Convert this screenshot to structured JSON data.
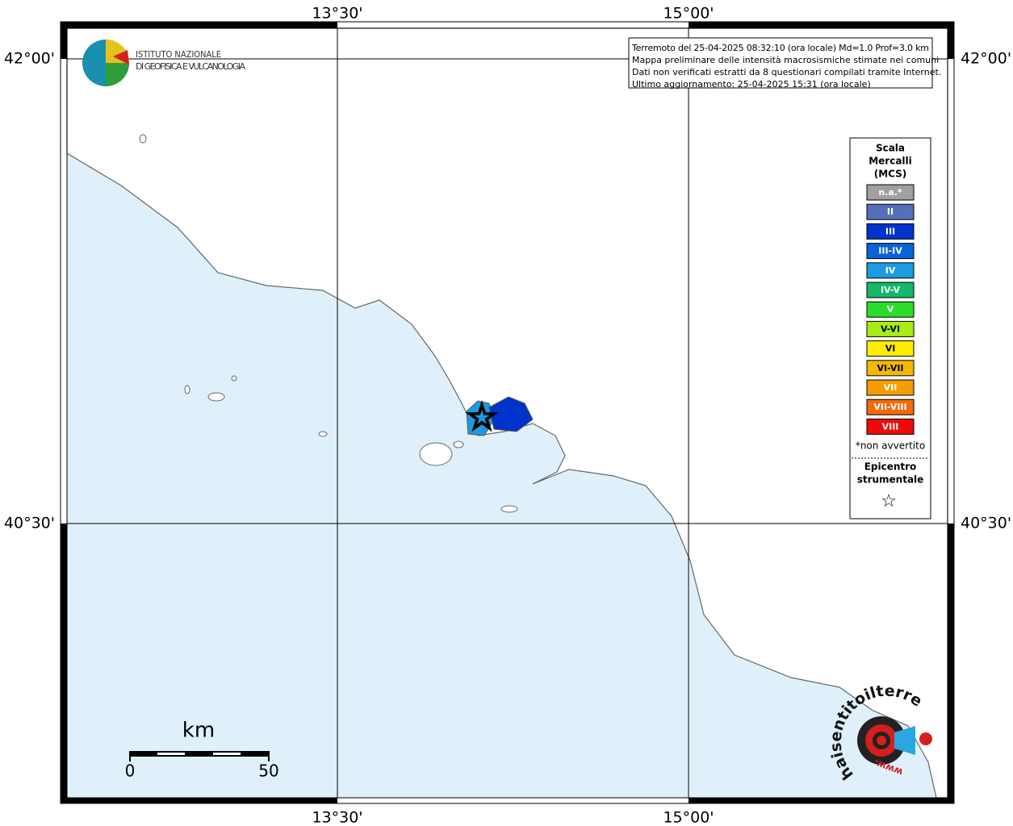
{
  "map": {
    "grid_labels": {
      "top": [
        "13°30'",
        "15°00'"
      ],
      "bottom": [
        "13°30'",
        "15°00'"
      ],
      "left": [
        "42°00'",
        "40°30'"
      ],
      "right": [
        "42°00'",
        "40°30'"
      ]
    },
    "logo": {
      "line1": "ISTITUTO NAZIONALE",
      "line2": "DI GEOFISICA E VULCANOLOGIA"
    },
    "info": [
      "Terremoto del 25-04-2025 08:32:10 (ora locale) Md=1.0 Prof=3.0 km",
      "Mappa preliminare delle intensità macrosismiche stimate nei comuni",
      "Dati non verificati estratti da 8 questionari compilati tramite Internet.",
      "Ultimo aggiornamento: 25-04-2025 15:31 (ora locale)"
    ],
    "legend": {
      "title": [
        "Scala",
        "Mercalli",
        "(MCS)"
      ],
      "levels": [
        {
          "label": "n.a.*",
          "color": "#a0a0a0"
        },
        {
          "label": "II",
          "color": "#5470b8"
        },
        {
          "label": "III",
          "color": "#0033cc"
        },
        {
          "label": "III-IV",
          "color": "#0a63d4"
        },
        {
          "label": "IV",
          "color": "#1c9be0"
        },
        {
          "label": "IV-V",
          "color": "#13b86a"
        },
        {
          "label": "V",
          "color": "#2bdc2b"
        },
        {
          "label": "V-VI",
          "color": "#a8ee14"
        },
        {
          "label": "VI",
          "color": "#ffee00"
        },
        {
          "label": "VI-VII",
          "color": "#f5b800"
        },
        {
          "label": "VII",
          "color": "#f59c00"
        },
        {
          "label": "VII-VIII",
          "color": "#f56a0a"
        },
        {
          "label": "VIII",
          "color": "#ee0a0a"
        }
      ],
      "note": "*non avvertito",
      "epicenter": [
        "Epicentro",
        "strumentale"
      ],
      "star": "☆"
    },
    "scale_bar": {
      "unit": "km",
      "start": "0",
      "end": "50"
    },
    "site_logo": {
      "text": "haisentitoilterremoto.it",
      "www": "www."
    }
  }
}
